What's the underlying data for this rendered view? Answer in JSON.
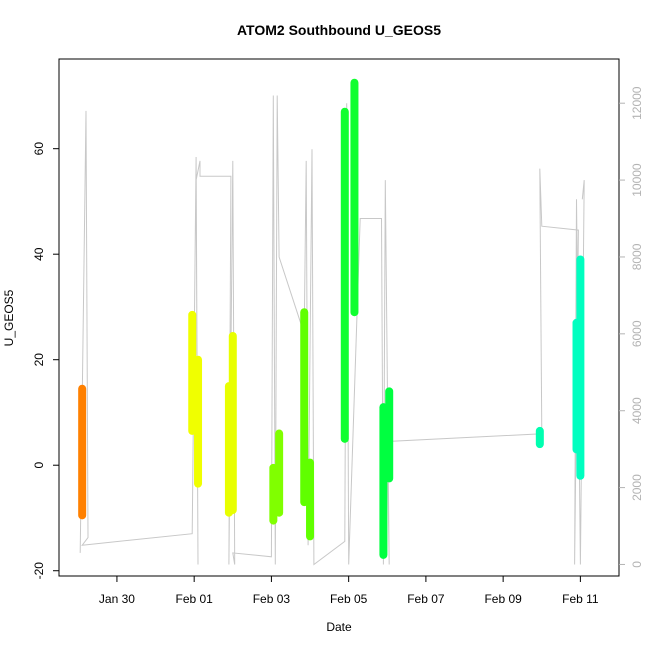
{
  "chart_data": {
    "type": "scatter",
    "title": "ATOM2 Southbound U_GEOS5",
    "xlabel": "Date",
    "ylabel": "U_GEOS5",
    "x_tick_labels": [
      "Jan 30",
      "Feb 01",
      "Feb 03",
      "Feb 05",
      "Feb 07",
      "Feb 09",
      "Feb 11"
    ],
    "x_tick_days": [
      30,
      32,
      34,
      36,
      38,
      40,
      42
    ],
    "xlim_days": [
      28.5,
      43
    ],
    "ylim": [
      -21,
      77
    ],
    "y_ticks": [
      -20,
      0,
      20,
      40,
      60
    ],
    "y2_label": "",
    "y2_ticks": [
      0,
      2000,
      4000,
      6000,
      8000,
      10000,
      12000
    ],
    "y2lim": [
      -300,
      13150
    ],
    "grid": false,
    "legend": "none",
    "secondary_series_color": "#c8c8c8",
    "segments": [
      {
        "day": 29.1,
        "ymin": -9.5,
        "ymax": 14.5,
        "color": "#ff8000"
      },
      {
        "day": 31.95,
        "ymin": 6.5,
        "ymax": 28.5,
        "color": "#f0ff00"
      },
      {
        "day": 32.1,
        "ymin": -3.5,
        "ymax": 20.0,
        "color": "#f0ff00"
      },
      {
        "day": 32.9,
        "ymin": -9.0,
        "ymax": 15.0,
        "color": "#e8ff00"
      },
      {
        "day": 33.0,
        "ymin": -8.5,
        "ymax": 24.5,
        "color": "#e8ff00"
      },
      {
        "day": 34.05,
        "ymin": -10.5,
        "ymax": -0.5,
        "color": "#80ff00"
      },
      {
        "day": 34.2,
        "ymin": -9.0,
        "ymax": 6.0,
        "color": "#80ff00"
      },
      {
        "day": 34.85,
        "ymin": -7.0,
        "ymax": 29.0,
        "color": "#60ff00"
      },
      {
        "day": 35.0,
        "ymin": -13.5,
        "ymax": 0.5,
        "color": "#60ff00"
      },
      {
        "day": 35.9,
        "ymin": 5.0,
        "ymax": 67.0,
        "color": "#10ff30"
      },
      {
        "day": 36.15,
        "ymin": 29.0,
        "ymax": 72.5,
        "color": "#10ff30"
      },
      {
        "day": 36.9,
        "ymin": -17.0,
        "ymax": 11.0,
        "color": "#00ff40"
      },
      {
        "day": 37.05,
        "ymin": -2.5,
        "ymax": 14.0,
        "color": "#00ff40"
      },
      {
        "day": 40.95,
        "ymin": 4.0,
        "ymax": 6.5,
        "color": "#00ffb0"
      },
      {
        "day": 41.9,
        "ymin": 3.0,
        "ymax": 27.0,
        "color": "#00ffc0"
      },
      {
        "day": 42.0,
        "ymin": -2.0,
        "ymax": 39.0,
        "color": "#00ffc0"
      }
    ],
    "secondary_line": [
      [
        29.05,
        300
      ],
      [
        29.2,
        11800
      ],
      [
        29.25,
        700
      ],
      [
        29.1,
        500
      ],
      [
        31.95,
        800
      ],
      [
        32.05,
        10600
      ],
      [
        32.1,
        0
      ],
      [
        32.05,
        10000
      ],
      [
        32.15,
        10500
      ],
      [
        32.15,
        10100
      ],
      [
        32.95,
        10100
      ],
      [
        32.9,
        0
      ],
      [
        33.0,
        10500
      ],
      [
        33.05,
        0
      ],
      [
        33.0,
        300
      ],
      [
        34.0,
        200
      ],
      [
        34.05,
        12200
      ],
      [
        34.1,
        0
      ],
      [
        34.15,
        12200
      ],
      [
        34.2,
        8000
      ],
      [
        34.85,
        6000
      ],
      [
        34.9,
        10500
      ],
      [
        34.95,
        500
      ],
      [
        35.05,
        10800
      ],
      [
        35.1,
        0
      ],
      [
        35.9,
        600
      ],
      [
        35.95,
        12000
      ],
      [
        36.0,
        0
      ],
      [
        36.3,
        9000
      ],
      [
        36.85,
        9000
      ],
      [
        36.9,
        0
      ],
      [
        36.95,
        10000
      ],
      [
        37.05,
        0
      ],
      [
        37.0,
        3200
      ],
      [
        41.0,
        3400
      ],
      [
        40.95,
        10300
      ],
      [
        41.0,
        8800
      ],
      [
        41.95,
        8700
      ],
      [
        41.85,
        0
      ],
      [
        41.9,
        9500
      ],
      [
        42.0,
        0
      ],
      [
        42.1,
        10000
      ],
      [
        42.05,
        9500
      ]
    ]
  }
}
